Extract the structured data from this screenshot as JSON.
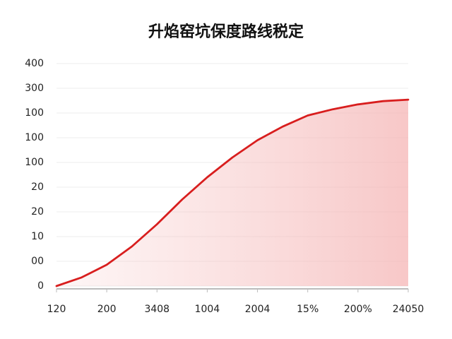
{
  "chart_data": {
    "type": "line",
    "title": "升焰窑坑保度路线税定",
    "x": [
      0,
      0.5,
      1,
      1.5,
      2,
      2.5,
      3,
      3.5,
      4,
      4.5,
      5,
      5.5,
      6,
      6.5,
      7
    ],
    "series": [
      {
        "color": "#d81e1e",
        "values": [
          0,
          0.35,
          0.86,
          1.6,
          2.5,
          3.5,
          4.4,
          5.2,
          5.9,
          6.45,
          6.9,
          7.15,
          7.35,
          7.48,
          7.54
        ]
      }
    ],
    "fill_gradient": true,
    "xlim": [
      0,
      7
    ],
    "xticks": [
      {
        "value": 0,
        "label": "120"
      },
      {
        "value": 1,
        "label": "200"
      },
      {
        "value": 2,
        "label": "3408"
      },
      {
        "value": 3,
        "label": "1004"
      },
      {
        "value": 4,
        "label": "2004"
      },
      {
        "value": 5,
        "label": "15%"
      },
      {
        "value": 6,
        "label": "200%"
      },
      {
        "value": 7,
        "label": "24050"
      }
    ],
    "ylim": [
      0,
      9
    ],
    "yticks": [
      {
        "value": 0,
        "label": "0"
      },
      {
        "value": 1,
        "label": "00"
      },
      {
        "value": 2,
        "label": "10"
      },
      {
        "value": 3,
        "label": "20"
      },
      {
        "value": 4,
        "label": "20"
      },
      {
        "value": 5,
        "label": "100"
      },
      {
        "value": 6,
        "label": "100"
      },
      {
        "value": 7,
        "label": "100"
      },
      {
        "value": 8,
        "label": "300"
      },
      {
        "value": 9,
        "label": "400"
      }
    ],
    "grid": true
  }
}
